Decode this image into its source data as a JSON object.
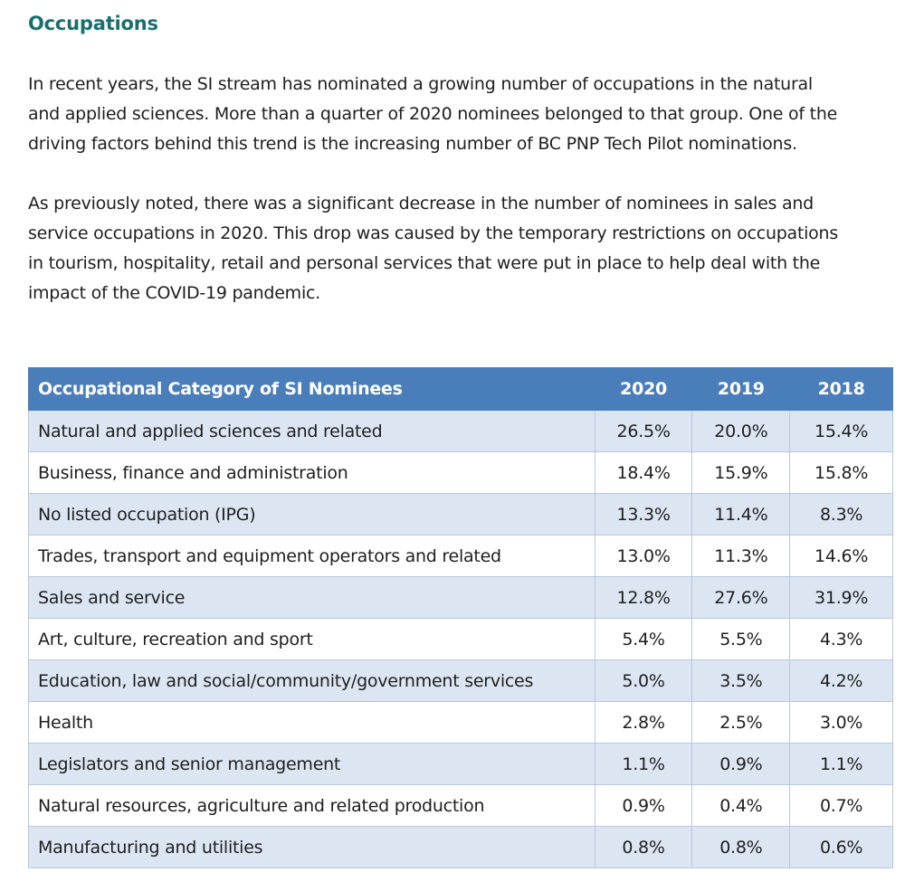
{
  "heading": "Occupations",
  "paragraphs": [
    {
      "lines": [
        "In recent years, the SI stream has nominated a growing number of occupations in the natural",
        "and applied sciences. More than a quarter of 2020 nominees belonged to that group. One of the",
        "driving factors behind this trend is the increasing number of BC PNP Tech Pilot nominations."
      ]
    },
    {
      "lines": [
        "As previously noted, there was a significant decrease in the number of nominees in sales and",
        "service occupations in 2020. This drop was caused by the temporary restrictions on occupations",
        "in tourism, hospitality, retail and personal services that were put in place to help deal with the",
        "impact of the COVID-19 pandemic."
      ]
    }
  ],
  "table": {
    "headers": [
      "Occupational Category of SI Nominees",
      "2020",
      "2019",
      "2018"
    ],
    "rows": [
      [
        "Natural and applied sciences and related",
        "26.5%",
        "20.0%",
        "15.4%"
      ],
      [
        "Business, finance and administration",
        "18.4%",
        "15.9%",
        "15.8%"
      ],
      [
        "No listed occupation (IPG)",
        "13.3%",
        "11.4%",
        "8.3%"
      ],
      [
        "Trades, transport and equipment operators and related",
        "13.0%",
        "11.3%",
        "14.6%"
      ],
      [
        "Sales and service",
        "12.8%",
        "27.6%",
        "31.9%"
      ],
      [
        "Art, culture, recreation and sport",
        "5.4%",
        "5.5%",
        "4.3%"
      ],
      [
        "Education, law and social/community/government services",
        "5.0%",
        "3.5%",
        "4.2%"
      ],
      [
        "Health",
        "2.8%",
        "2.5%",
        "3.0%"
      ],
      [
        "Legislators and senior management",
        "1.1%",
        "0.9%",
        "1.1%"
      ],
      [
        "Natural resources, agriculture and related production",
        "0.9%",
        "0.4%",
        "0.7%"
      ],
      [
        "Manufacturing and utilities",
        "0.8%",
        "0.8%",
        "0.6%"
      ]
    ]
  }
}
